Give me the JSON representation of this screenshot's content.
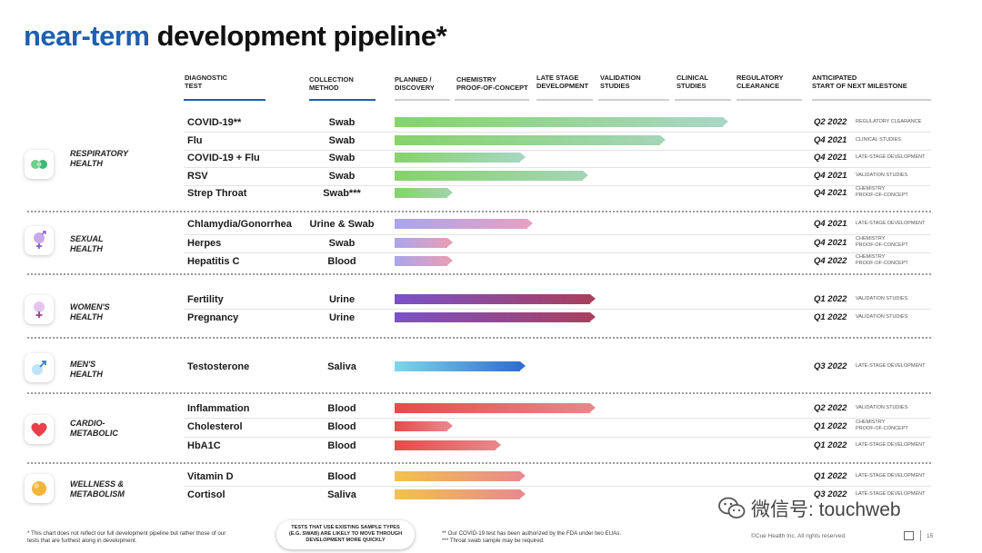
{
  "title": {
    "accent": "near-term",
    "main": "development pipeline*"
  },
  "headers": [
    {
      "key": "diag",
      "lines": [
        "DIAGNOSTIC",
        "TEST"
      ]
    },
    {
      "key": "coll",
      "lines": [
        "COLLECTION",
        "METHOD"
      ]
    },
    {
      "key": "plan",
      "lines": [
        "PLANNED /",
        "DISCOVERY"
      ]
    },
    {
      "key": "chem",
      "lines": [
        "CHEMISTRY",
        "PROOF-OF-CONCEPT"
      ]
    },
    {
      "key": "late",
      "lines": [
        "LATE STAGE",
        "DEVELOPMENT"
      ]
    },
    {
      "key": "val",
      "lines": [
        "VALIDATION",
        "STUDIES"
      ]
    },
    {
      "key": "clin",
      "lines": [
        "CLINICAL",
        "STUDIES"
      ]
    },
    {
      "key": "reg",
      "lines": [
        "REGULATORY",
        "CLEARANCE"
      ]
    },
    {
      "key": "ant",
      "lines": [
        "ANTICIPATED",
        "START OF NEXT MILESTONE"
      ]
    }
  ],
  "stage_order": [
    "Planned / Discovery",
    "Chemistry Proof-of-Concept",
    "Late Stage Development",
    "Validation Studies",
    "Clinical Studies",
    "Regulatory Clearance"
  ],
  "categories": [
    {
      "id": "respiratory",
      "label": [
        "RESPIRATORY",
        "HEALTH"
      ],
      "icon": "lungs-icon",
      "tests": [
        {
          "name": "COVID-19**",
          "method": "Swab",
          "progress": 0.94,
          "colors": [
            "#86d36a",
            "#a9d6c4"
          ],
          "milestone": "Q2 2022",
          "stage": [
            "REGULATORY CLEARANCE"
          ]
        },
        {
          "name": "Flu",
          "method": "Swab",
          "progress": 0.76,
          "colors": [
            "#86d36a",
            "#a3d5b6"
          ],
          "milestone": "Q4 2021",
          "stage": [
            "CLINICAL STUDIES"
          ]
        },
        {
          "name": "COVID-19 + Flu",
          "method": "Swab",
          "progress": 0.36,
          "colors": [
            "#86d36a",
            "#a6d6c0"
          ],
          "milestone": "Q4 2021",
          "stage": [
            "LATE-STAGE DEVELOPMENT"
          ]
        },
        {
          "name": "RSV",
          "method": "Swab",
          "progress": 0.54,
          "colors": [
            "#86d36a",
            "#a3d5b4"
          ],
          "milestone": "Q4 2021",
          "stage": [
            "VALIDATION STUDIES"
          ]
        },
        {
          "name": "Strep Throat",
          "method": "Swab***",
          "progress": 0.15,
          "colors": [
            "#86d36a",
            "#9ed4a6"
          ],
          "milestone": "Q4 2021",
          "stage": [
            "CHEMISTRY",
            "PROOF-OF-CONCEPT"
          ]
        }
      ]
    },
    {
      "id": "sexual",
      "label": [
        "SEXUAL",
        "HEALTH"
      ],
      "icon": "gender-symbol-icon",
      "tests": [
        {
          "name": "Chlamydia/Gonorrhea",
          "method": "Urine & Swab",
          "progress": 0.38,
          "colors": [
            "#a9a6ec",
            "#e6a0c4"
          ],
          "milestone": "Q4 2021",
          "stage": [
            "LATE-STAGE DEVELOPMENT"
          ]
        },
        {
          "name": "Herpes",
          "method": "Swab",
          "progress": 0.15,
          "colors": [
            "#a9a6ec",
            "#e69eb8"
          ],
          "milestone": "Q4 2021",
          "stage": [
            "CHEMISTRY",
            "PROOF-OF-CONCEPT"
          ]
        },
        {
          "name": "Hepatitis C",
          "method": "Blood",
          "progress": 0.15,
          "colors": [
            "#a9a6ec",
            "#e69eb8"
          ],
          "milestone": "Q4 2022",
          "stage": [
            "CHEMISTRY",
            "PROOF-OF-CONCEPT"
          ]
        }
      ]
    },
    {
      "id": "womens",
      "label": [
        "WOMEN'S",
        "HEALTH"
      ],
      "icon": "female-symbol-icon",
      "tests": [
        {
          "name": "Fertility",
          "method": "Urine",
          "progress": 0.56,
          "colors": [
            "#7a52c8",
            "#a8405e"
          ],
          "milestone": "Q1 2022",
          "stage": [
            "VALIDATION STUDIES"
          ]
        },
        {
          "name": "Pregnancy",
          "method": "Urine",
          "progress": 0.56,
          "colors": [
            "#7a52c8",
            "#a8405e"
          ],
          "milestone": "Q1 2022",
          "stage": [
            "VALIDATION STUDIES"
          ]
        }
      ]
    },
    {
      "id": "mens",
      "label": [
        "MEN'S",
        "HEALTH"
      ],
      "icon": "male-symbol-icon",
      "tests": [
        {
          "name": "Testosterone",
          "method": "Saliva",
          "progress": 0.36,
          "colors": [
            "#7fd6ea",
            "#2f6fd0"
          ],
          "milestone": "Q3 2022",
          "stage": [
            "LATE-STAGE DEVELOPMENT"
          ]
        }
      ]
    },
    {
      "id": "cardio",
      "label": [
        "CARDIO-",
        "METABOLIC"
      ],
      "icon": "heart-icon",
      "tests": [
        {
          "name": "Inflammation",
          "method": "Blood",
          "progress": 0.56,
          "colors": [
            "#e84a4a",
            "#e8868a"
          ],
          "milestone": "Q2 2022",
          "stage": [
            "VALIDATION STUDIES"
          ]
        },
        {
          "name": "Cholesterol",
          "method": "Blood",
          "progress": 0.15,
          "colors": [
            "#e84a4a",
            "#e8868a"
          ],
          "milestone": "Q1 2022",
          "stage": [
            "CHEMISTRY",
            "PROOF-OF-CONCEPT"
          ]
        },
        {
          "name": "HbA1C",
          "method": "Blood",
          "progress": 0.29,
          "colors": [
            "#e84a4a",
            "#e8868a"
          ],
          "milestone": "Q1 2022",
          "stage": [
            "LATE-STAGE DEVELOPMENT"
          ]
        }
      ]
    },
    {
      "id": "wellness",
      "label": [
        "WELLNESS &",
        "METABOLISM"
      ],
      "icon": "wellness-orb-icon",
      "tests": [
        {
          "name": "Vitamin D",
          "method": "Blood",
          "progress": 0.36,
          "colors": [
            "#f2c24a",
            "#e88a8e"
          ],
          "milestone": "Q1 2022",
          "stage": [
            "LATE-STAGE DEVELOPMENT"
          ]
        },
        {
          "name": "Cortisol",
          "method": "Saliva",
          "progress": 0.36,
          "colors": [
            "#f2c24a",
            "#e88a8e"
          ],
          "milestone": "Q3 2022",
          "stage": [
            "LATE-STAGE DEVELOPMENT"
          ]
        }
      ]
    }
  ],
  "footnotes": {
    "left": [
      "* This chart does not reflect our full development pipeline but rather those of our",
      "tests that are furthest along in development."
    ],
    "callout": [
      "TESTS THAT USE EXISTING SAMPLE TYPES",
      "(E.G. SWAB) ARE LIKELY TO MOVE THROUGH",
      "DEVELOPMENT MORE QUICKLY"
    ],
    "right": [
      "** Our COVID-19 test has been authorized by the FDA under two EUAs.",
      "*** Throat swab sample may be required."
    ]
  },
  "watermark": "微信号: touchweb",
  "copyright": "©Cue Health Inc. All rights reserved.",
  "page_number": "15",
  "colors": {
    "accent": "#1d5fb0",
    "separator": "#9a9aa0"
  }
}
